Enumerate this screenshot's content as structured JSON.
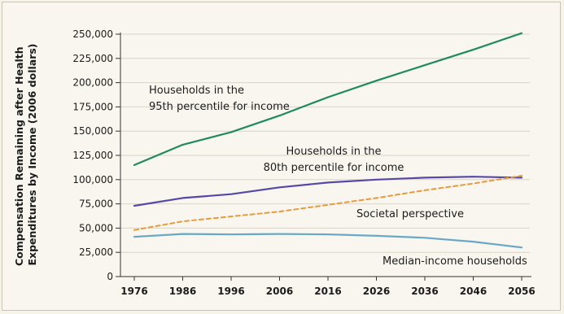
{
  "chart_data": {
    "type": "line",
    "ylabel_lines": [
      "Compensation Remaining after Health",
      "Expenditures by Income (2006 dollars)"
    ],
    "x": [
      1976,
      1986,
      1996,
      2006,
      2016,
      2026,
      2036,
      2046,
      2056
    ],
    "y_ticks": [
      0,
      25000,
      50000,
      75000,
      100000,
      125000,
      150000,
      175000,
      200000,
      225000,
      250000
    ],
    "y_tick_labels": [
      "0",
      "25,000",
      "50,000",
      "75,000",
      "100,000",
      "125,000",
      "150,000",
      "175,000",
      "200,000",
      "225,000",
      "250,000"
    ],
    "x_tick_labels": [
      "1976",
      "1986",
      "1996",
      "2006",
      "2016",
      "2026",
      "2036",
      "2046",
      "2056"
    ],
    "xlim": [
      1976,
      2056
    ],
    "ylim": [
      0,
      250000
    ],
    "grid": "horizontal",
    "series": [
      {
        "key": "p95",
        "label_lines": [
          "Households in the",
          "95th percentile for income"
        ],
        "color": "#1f8a5c",
        "style": "solid",
        "values": [
          115000,
          136000,
          149000,
          166000,
          185000,
          202000,
          218000,
          234000,
          251000
        ]
      },
      {
        "key": "p80",
        "label_lines": [
          "Households in the",
          "80th percentile for income"
        ],
        "color": "#5648a8",
        "style": "solid",
        "values": [
          73000,
          81000,
          85000,
          92000,
          97000,
          100000,
          102000,
          103000,
          102000
        ]
      },
      {
        "key": "societal",
        "label_lines": [
          "Societal perspective"
        ],
        "color": "#e89a3c",
        "style": "dashed",
        "values": [
          48000,
          57000,
          62000,
          67000,
          74000,
          81000,
          89000,
          96000,
          104000
        ]
      },
      {
        "key": "median",
        "label_lines": [
          "Median-income households"
        ],
        "color": "#6aa8c8",
        "style": "solid",
        "values": [
          41000,
          44000,
          43500,
          44000,
          43500,
          42000,
          40000,
          36000,
          30000
        ]
      }
    ]
  },
  "colors": {
    "background": "#f8f6ee",
    "grid": "#d8d4c8",
    "axis": "#333333"
  }
}
